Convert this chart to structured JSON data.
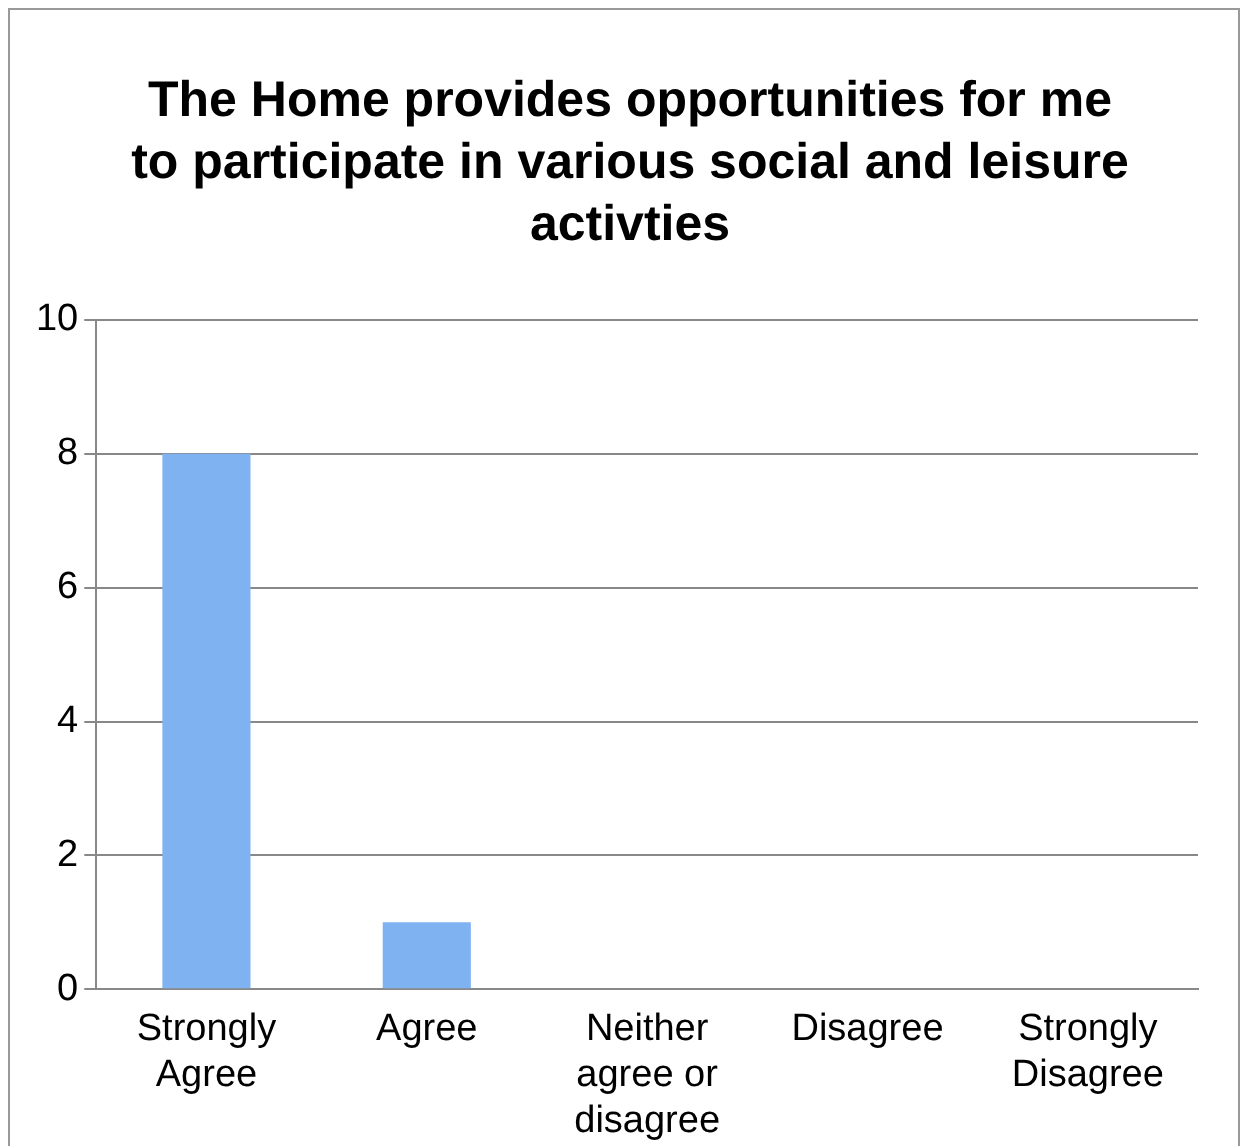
{
  "chart_data": {
    "type": "bar",
    "title": "The Home provides opportunities for me to participate in various social and leisure activties",
    "categories": [
      "Strongly Agree",
      "Agree",
      "Neither agree or disagree",
      "Disagree",
      "Strongly Disagree"
    ],
    "values": [
      8,
      1,
      0,
      0,
      0
    ],
    "color": "#7fb2f0",
    "ylim": [
      0,
      10
    ],
    "yticks": [
      0,
      2,
      4,
      6,
      8,
      10
    ],
    "grid": "y",
    "legend": false
  }
}
